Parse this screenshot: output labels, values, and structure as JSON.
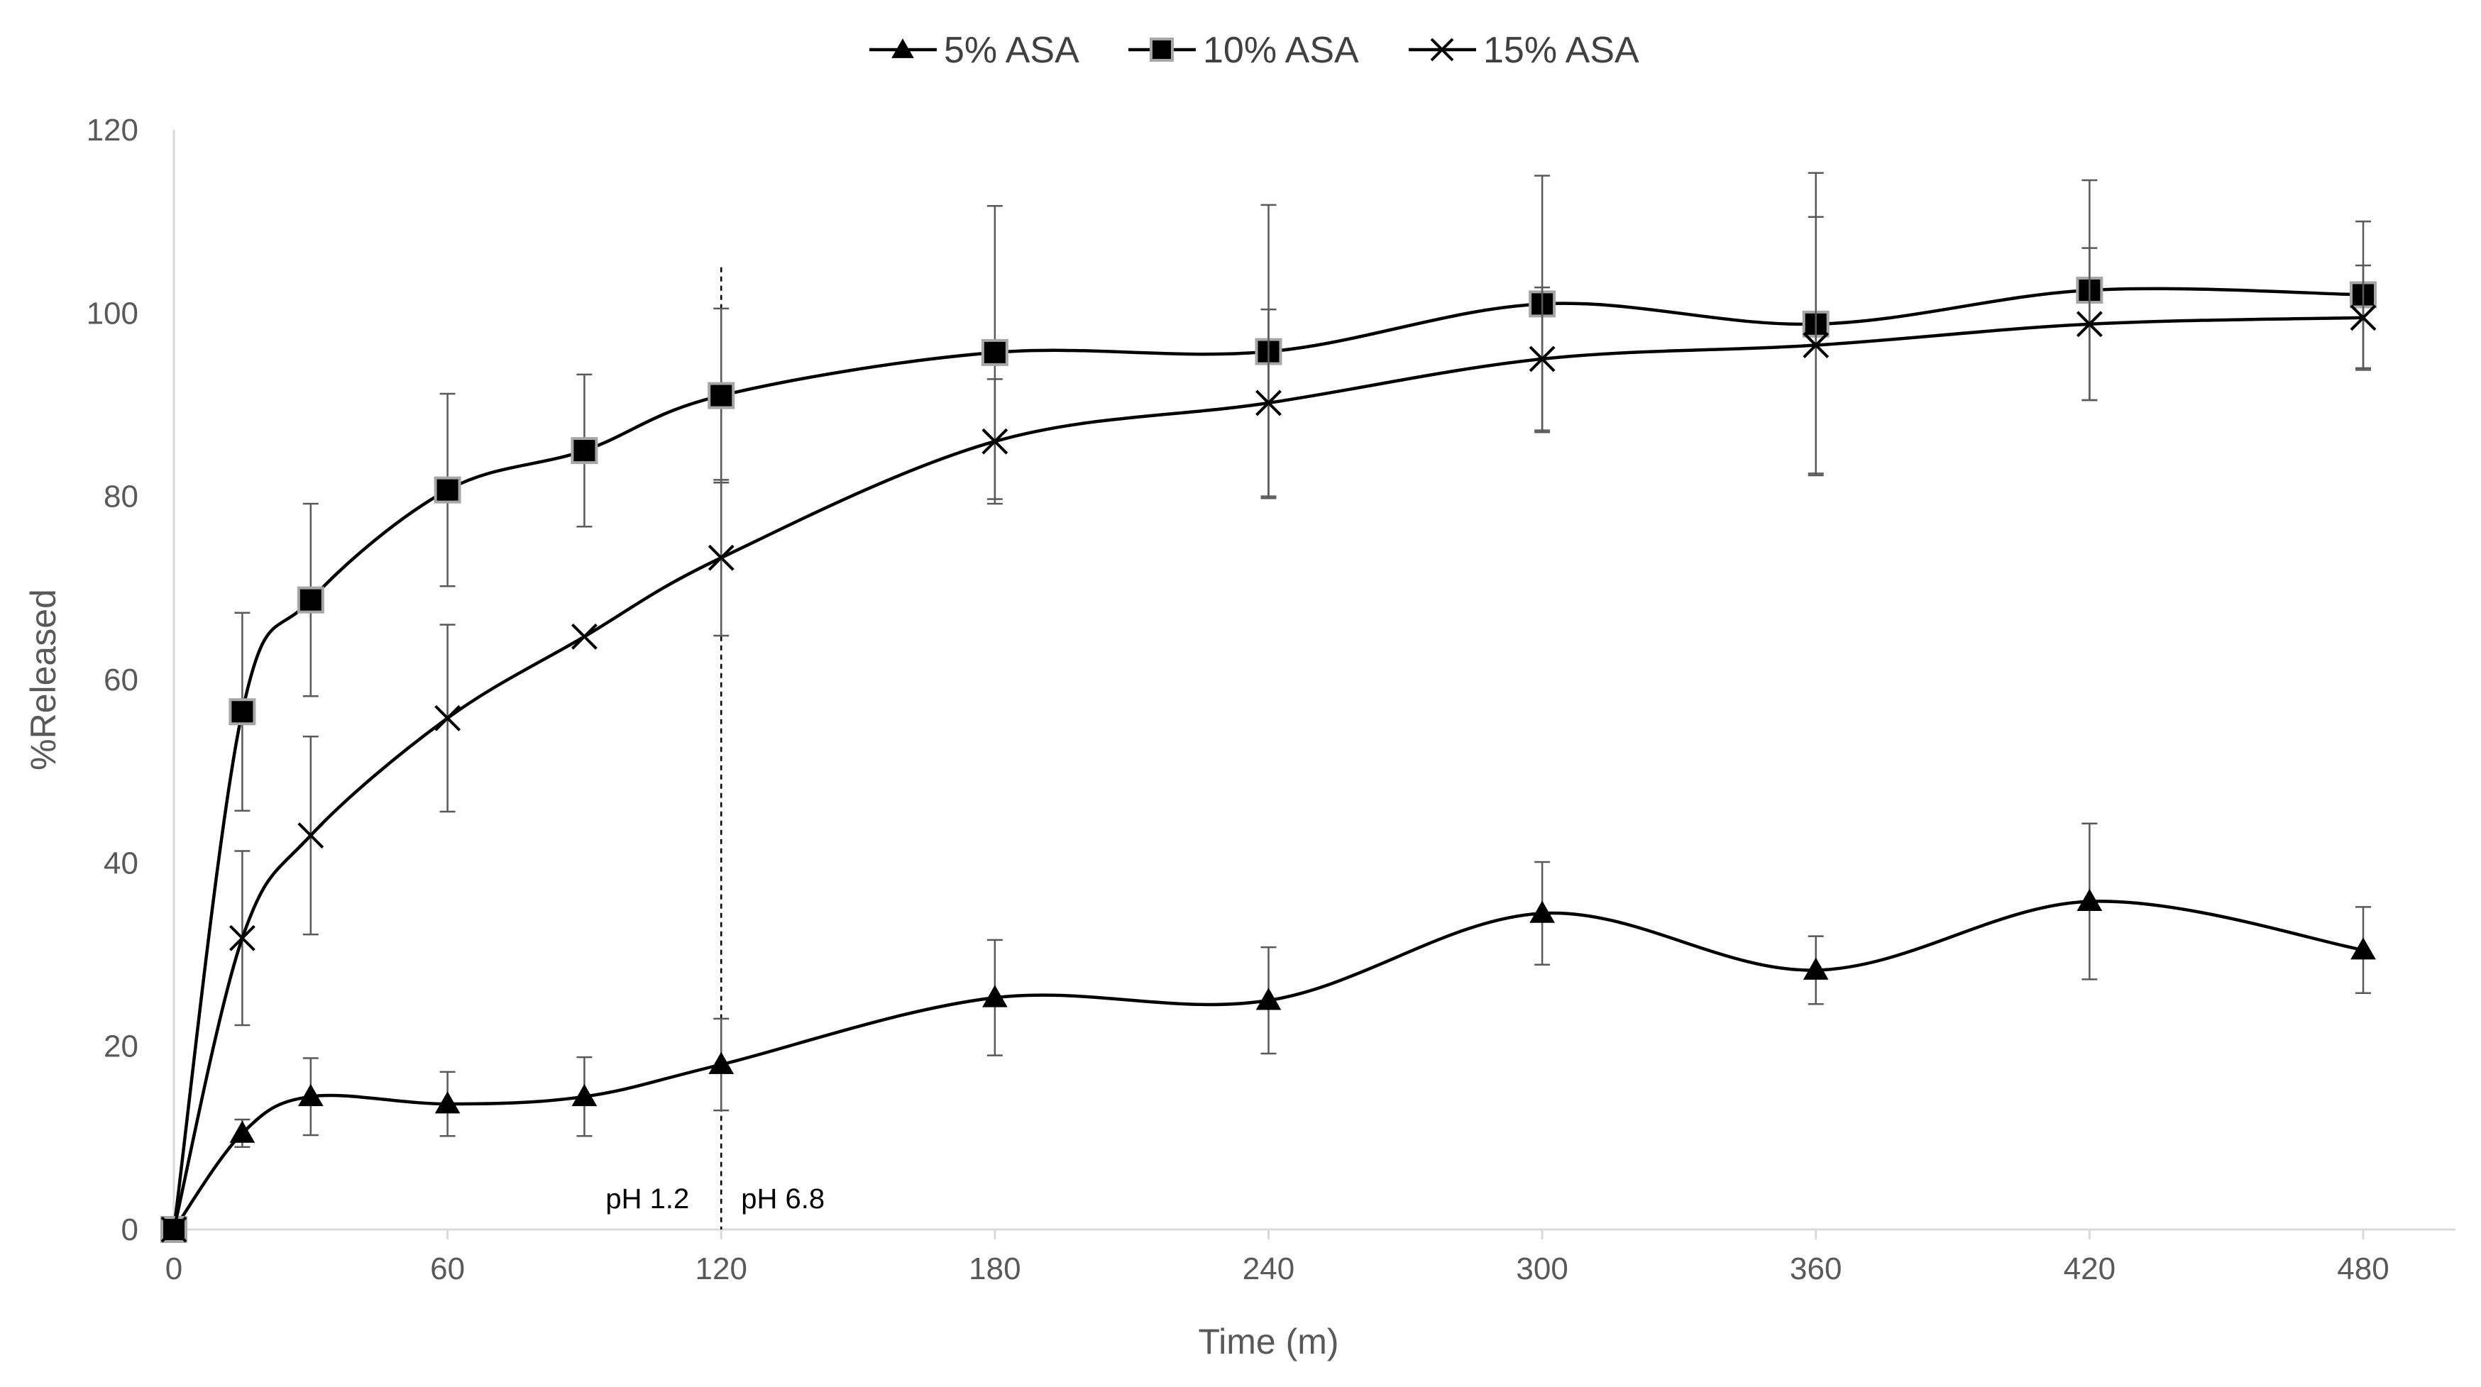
{
  "chart_data": {
    "type": "line",
    "title": "",
    "xlabel": "Time (m)",
    "ylabel": "%Released",
    "xlim": [
      0,
      480
    ],
    "ylim": [
      0,
      120
    ],
    "xticks": [
      0,
      60,
      120,
      180,
      240,
      300,
      360,
      420,
      480
    ],
    "yticks": [
      0,
      20,
      40,
      60,
      80,
      100,
      120
    ],
    "x": [
      0,
      15,
      30,
      60,
      90,
      120,
      180,
      240,
      300,
      360,
      420,
      480
    ],
    "legend_position": "top-center",
    "grid": false,
    "series": [
      {
        "name": "5% ASA",
        "marker": "triangle",
        "values": [
          0,
          10.5,
          14.5,
          13.7,
          14.5,
          18,
          25.3,
          25,
          34.5,
          28.3,
          35.8,
          30.5
        ],
        "errors": [
          0,
          1.5,
          4.2,
          3.5,
          4.3,
          5,
          6.3,
          5.8,
          5.6,
          3.7,
          8.5,
          4.7
        ]
      },
      {
        "name": "10% ASA",
        "marker": "square",
        "values": [
          0,
          56.5,
          68.7,
          80.7,
          85,
          91,
          95.7,
          95.8,
          101,
          98.8,
          102.5,
          102
        ],
        "errors": [
          0,
          10.8,
          10.5,
          10.5,
          8.3,
          9.5,
          16,
          16,
          14,
          16.5,
          12,
          8
        ]
      },
      {
        "name": "15% ASA",
        "marker": "x",
        "values": [
          0,
          31.8,
          43,
          55.8,
          64.7,
          73.3,
          86,
          90.2,
          95,
          96.5,
          98.8,
          99.5
        ],
        "errors": [
          0,
          9.5,
          10.8,
          10.2,
          0,
          8.5,
          6.8,
          10.2,
          7.8,
          14,
          8.3,
          5.7
        ]
      }
    ],
    "annotations": [
      {
        "text": "pH 1.2",
        "x": 120,
        "side": "left"
      },
      {
        "text": "pH 6.8",
        "x": 120,
        "side": "right"
      }
    ],
    "vline_x": 120
  }
}
